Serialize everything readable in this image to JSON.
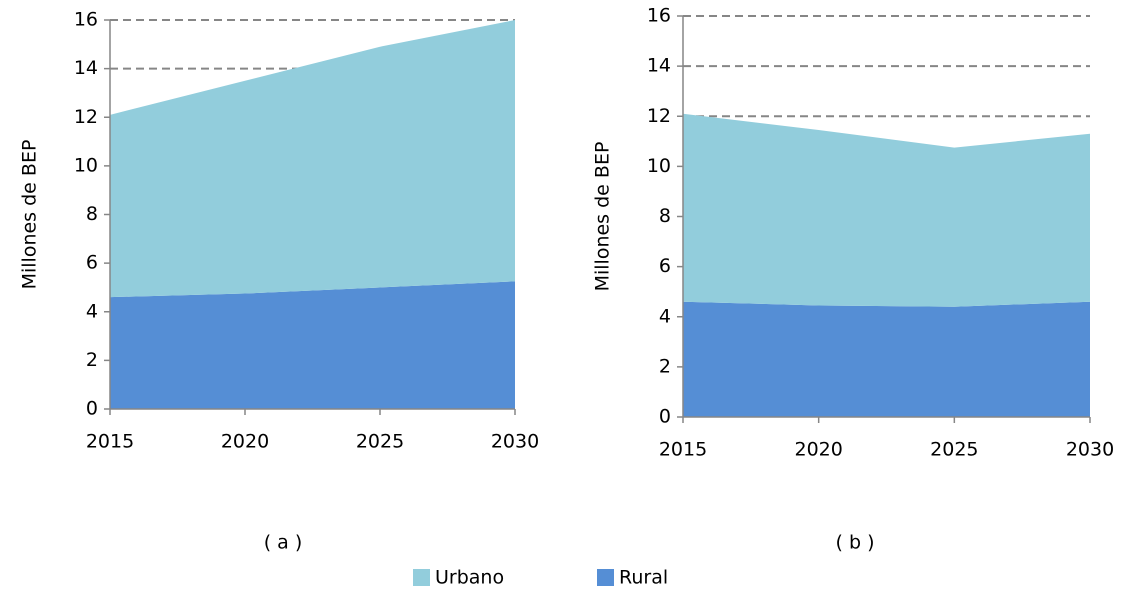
{
  "chart_data": [
    {
      "type": "stacked_area",
      "caption": "( a )",
      "ylabel": "Millones de BEP",
      "x": [
        2015,
        2020,
        2025,
        2030
      ],
      "xlim": [
        2015,
        2030
      ],
      "xticks": [
        2015,
        2020,
        2025,
        2030
      ],
      "ylim": [
        0,
        16
      ],
      "yticks": [
        0,
        2,
        4,
        6,
        8,
        10,
        12,
        14,
        16
      ],
      "grid": true,
      "series": [
        {
          "name": "Rural",
          "color": "#558ed5",
          "values": [
            4.6,
            4.75,
            5.0,
            5.25
          ]
        },
        {
          "name": "Urbano",
          "color": "#92cddc",
          "values": [
            7.5,
            8.75,
            9.9,
            10.75
          ]
        }
      ]
    },
    {
      "type": "stacked_area",
      "caption": "( b )",
      "ylabel": "Millones de BEP",
      "x": [
        2015,
        2020,
        2025,
        2030
      ],
      "xlim": [
        2015,
        2030
      ],
      "xticks": [
        2015,
        2020,
        2025,
        2030
      ],
      "ylim": [
        0,
        16
      ],
      "yticks": [
        0,
        2,
        4,
        6,
        8,
        10,
        12,
        14,
        16
      ],
      "grid": true,
      "series": [
        {
          "name": "Rural",
          "color": "#558ed5",
          "values": [
            4.6,
            4.45,
            4.4,
            4.6
          ]
        },
        {
          "name": "Urbano",
          "color": "#92cddc",
          "values": [
            7.5,
            7.0,
            6.35,
            6.7
          ]
        }
      ]
    }
  ]
}
